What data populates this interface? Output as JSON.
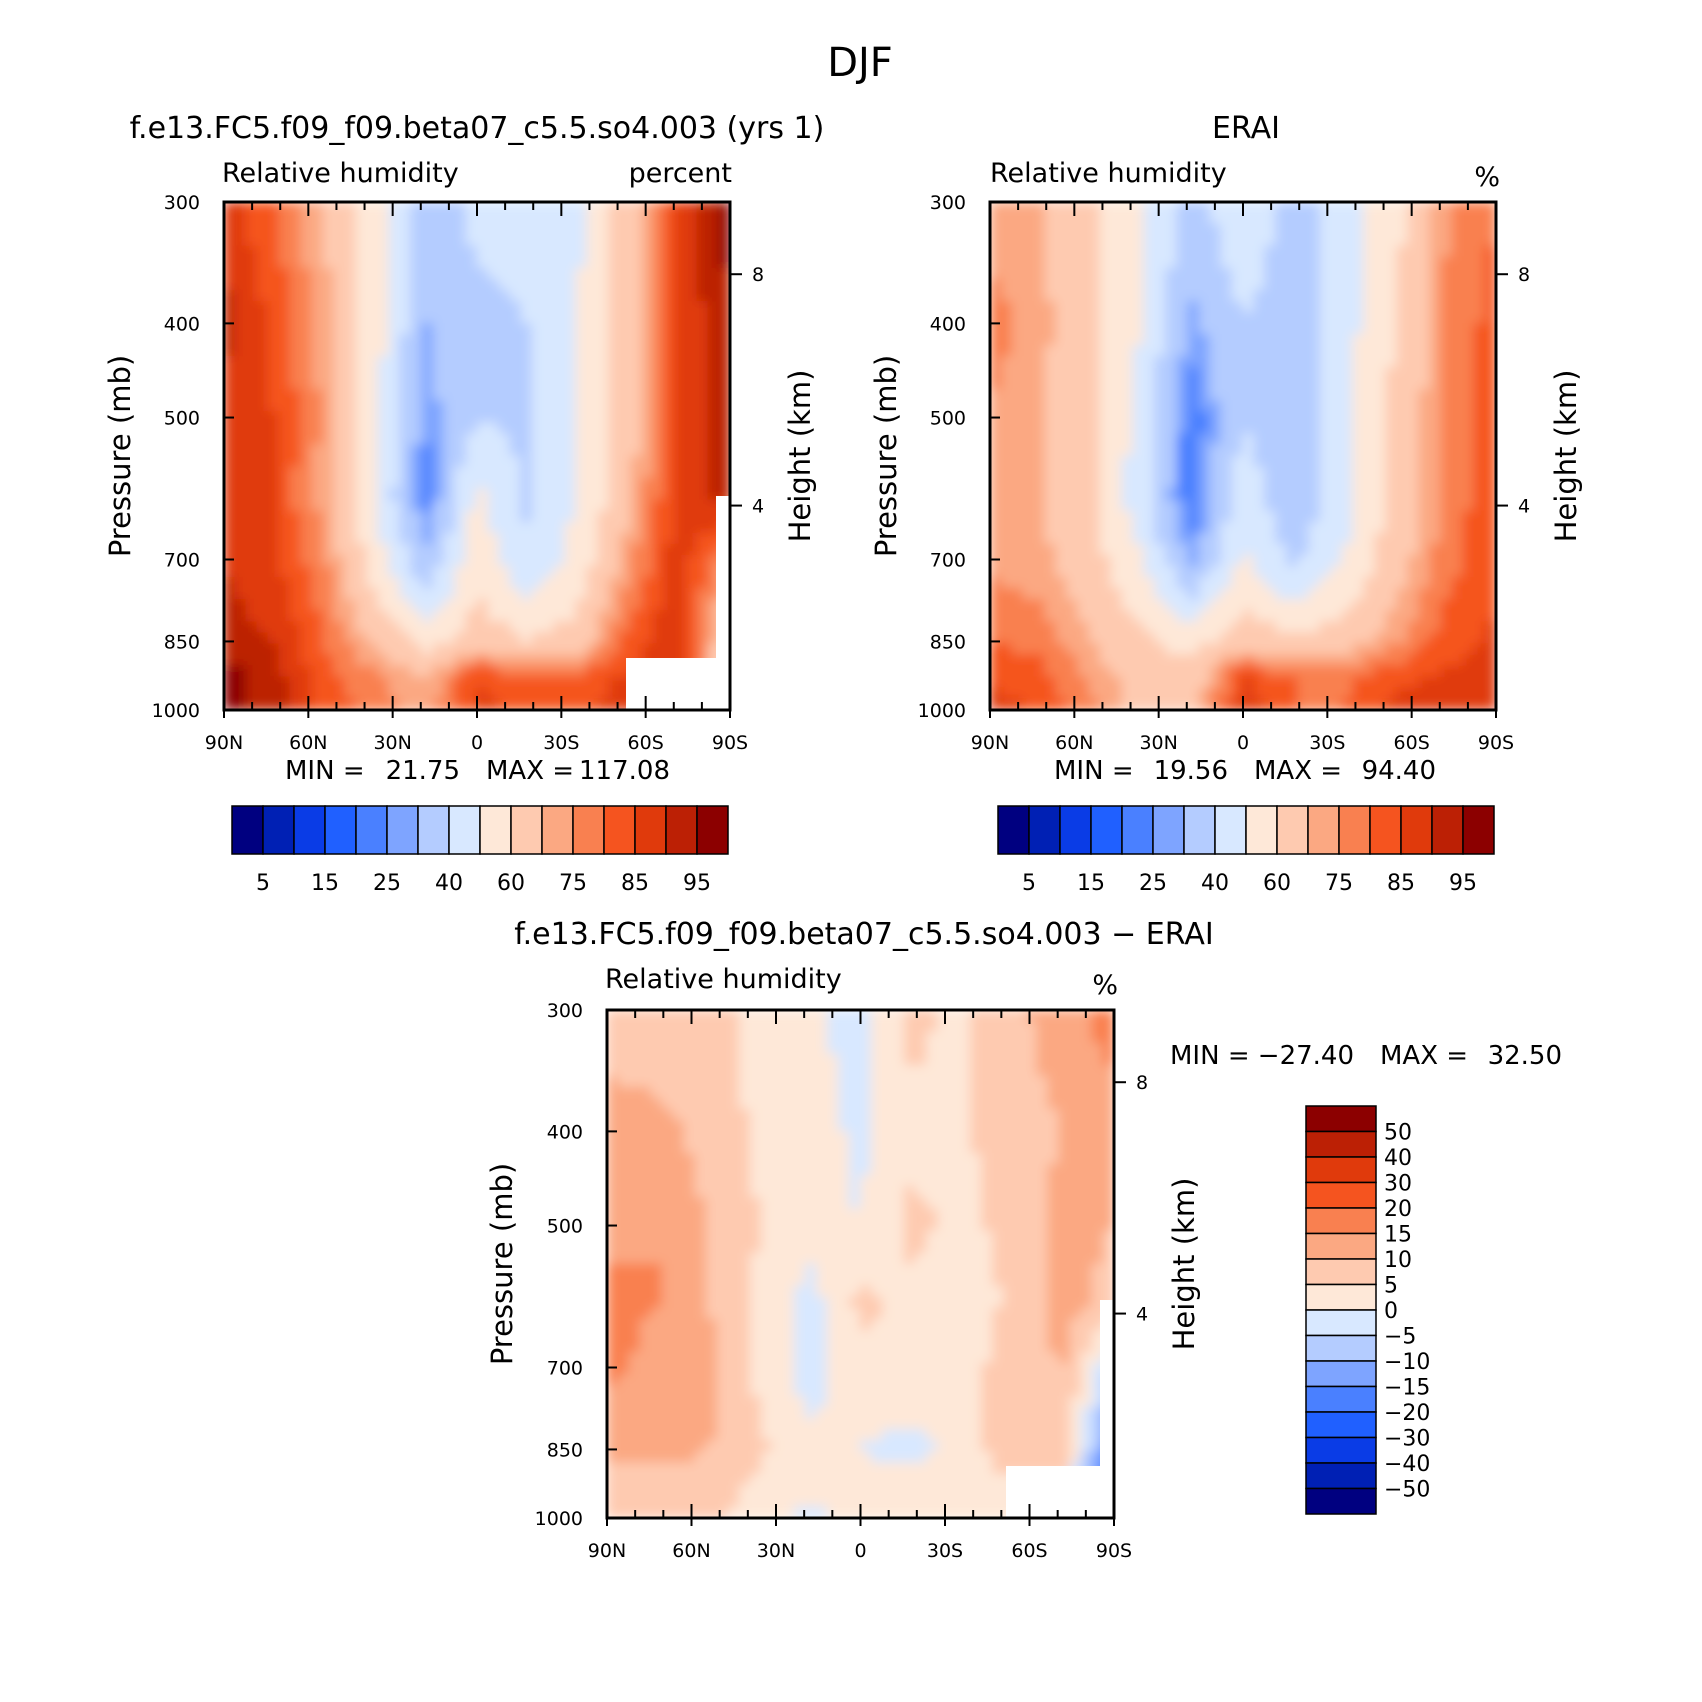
{
  "figure_title": "DJF",
  "panels": [
    {
      "title": "f.e13.FC5.f09_f09.beta07_c5.5.so4.003 (yrs 1)",
      "left_label": "Relative humidity",
      "right_label": "percent",
      "ylabel": "Pressure (mb)",
      "y2label": "Height (km)",
      "y_ticks": [
        "300",
        "400",
        "500",
        "700",
        "850",
        "1000"
      ],
      "y2_ticks": [
        "8",
        "4"
      ],
      "x_ticks": [
        "90N",
        "60N",
        "30N",
        "0",
        "30S",
        "60S",
        "90S"
      ],
      "min_label": "MIN =",
      "min_value": "21.75",
      "max_label": "MAX =",
      "max_value": "117.08",
      "colorbar_labels": [
        "5",
        "15",
        "25",
        "40",
        "60",
        "75",
        "85",
        "95"
      ]
    },
    {
      "title": "ERAI",
      "left_label": "Relative humidity",
      "right_label": "%",
      "ylabel": "Pressure (mb)",
      "y2label": "Height (km)",
      "y_ticks": [
        "300",
        "400",
        "500",
        "700",
        "850",
        "1000"
      ],
      "y2_ticks": [
        "8",
        "4"
      ],
      "x_ticks": [
        "90N",
        "60N",
        "30N",
        "0",
        "30S",
        "60S",
        "90S"
      ],
      "min_label": "MIN =",
      "min_value": "19.56",
      "max_label": "MAX =",
      "max_value": "94.40",
      "colorbar_labels": [
        "5",
        "15",
        "25",
        "40",
        "60",
        "75",
        "85",
        "95"
      ]
    },
    {
      "title": "f.e13.FC5.f09_f09.beta07_c5.5.so4.003 − ERAI",
      "left_label": "Relative humidity",
      "right_label": "%",
      "ylabel": "Pressure (mb)",
      "y2label": "Height (km)",
      "y_ticks": [
        "300",
        "400",
        "500",
        "700",
        "850",
        "1000"
      ],
      "y2_ticks": [
        "8",
        "4"
      ],
      "x_ticks": [
        "90N",
        "60N",
        "30N",
        "0",
        "30S",
        "60S",
        "90S"
      ],
      "min_label": "MIN =",
      "min_value": "−27.40",
      "max_label": "MAX =",
      "max_value": "32.50",
      "colorbar_labels": [
        "50",
        "40",
        "30",
        "20",
        "15",
        "10",
        "5",
        "0",
        "−5",
        "−10",
        "−15",
        "−20",
        "−30",
        "−40",
        "−50"
      ]
    }
  ],
  "colors": {
    "abs_scale": [
      "#000080",
      "#0020b4",
      "#0a3ce6",
      "#2060ff",
      "#4a80ff",
      "#7ea4ff",
      "#b4ccff",
      "#d8e8ff",
      "#fee8d8",
      "#fecab0",
      "#fba882",
      "#f98050",
      "#f5541f",
      "#e03a0c",
      "#bc2005",
      "#8c0000"
    ],
    "diff_scale": [
      "#8c0000",
      "#bc2005",
      "#e03a0c",
      "#f5541f",
      "#f98050",
      "#fba882",
      "#fecab0",
      "#fee8d8",
      "#d8e8ff",
      "#b4ccff",
      "#7ea4ff",
      "#4a80ff",
      "#2060ff",
      "#0a3ce6",
      "#0020b4",
      "#000080"
    ]
  },
  "chart_data": [
    {
      "type": "heatmap",
      "title": "f.e13.FC5.f09_f09.beta07_c5.5.so4.003 (yrs 1)",
      "xlabel": "",
      "ylabel": "Pressure (mb)",
      "y2label": "Height (km)",
      "x": [
        90,
        72,
        54,
        36,
        18,
        0,
        -18,
        -36,
        -54,
        -72,
        -90
      ],
      "x_tick_labels": [
        "90N",
        "60N",
        "30N",
        "0",
        "30S",
        "60S",
        "90S"
      ],
      "pressure": [
        300,
        400,
        500,
        600,
        700,
        850,
        925,
        1000
      ],
      "y_reversed": true,
      "units": "percent",
      "levels": [
        5,
        10,
        15,
        20,
        25,
        30,
        40,
        50,
        60,
        70,
        75,
        80,
        85,
        90,
        95
      ],
      "values": [
        [
          88,
          80,
          70,
          55,
          35,
          42,
          42,
          48,
          65,
          86,
          98
        ],
        [
          92,
          84,
          72,
          55,
          30,
          38,
          40,
          50,
          65,
          86,
          94
        ],
        [
          88,
          85,
          74,
          52,
          26,
          40,
          38,
          50,
          66,
          86,
          92
        ],
        [
          88,
          85,
          72,
          50,
          22,
          52,
          38,
          50,
          68,
          88,
          92
        ],
        [
          90,
          86,
          76,
          55,
          32,
          56,
          42,
          54,
          74,
          88,
          75
        ],
        [
          92,
          90,
          80,
          68,
          56,
          66,
          60,
          64,
          82,
          90,
          60
        ],
        [
          98,
          92,
          82,
          76,
          70,
          85,
          82,
          82,
          86,
          86,
          60
        ],
        [
          98,
          92,
          84,
          78,
          72,
          86,
          84,
          84,
          88,
          86,
          60
        ]
      ],
      "missing_region": "near-surface values south of ~60S",
      "min": 21.75,
      "max": 117.08
    },
    {
      "type": "heatmap",
      "title": "ERAI",
      "xlabel": "",
      "ylabel": "Pressure (mb)",
      "y2label": "Height (km)",
      "x": [
        90,
        72,
        54,
        36,
        18,
        0,
        -18,
        -36,
        -54,
        -72,
        -90
      ],
      "x_tick_labels": [
        "90N",
        "60N",
        "30N",
        "0",
        "30S",
        "60S",
        "90S"
      ],
      "pressure": [
        300,
        400,
        500,
        600,
        700,
        850,
        925,
        1000
      ],
      "y_reversed": true,
      "units": "%",
      "levels": [
        5,
        10,
        15,
        20,
        25,
        30,
        40,
        50,
        60,
        70,
        75,
        80,
        85,
        90,
        95
      ],
      "values": [
        [
          72,
          70,
          62,
          52,
          36,
          48,
          36,
          44,
          56,
          74,
          80
        ],
        [
          78,
          72,
          64,
          50,
          28,
          40,
          34,
          46,
          60,
          76,
          82
        ],
        [
          74,
          70,
          64,
          46,
          20,
          40,
          30,
          46,
          62,
          76,
          82
        ],
        [
          72,
          70,
          62,
          44,
          20,
          46,
          32,
          46,
          62,
          76,
          84
        ],
        [
          74,
          72,
          64,
          50,
          28,
          52,
          38,
          50,
          66,
          78,
          84
        ],
        [
          80,
          78,
          70,
          62,
          56,
          66,
          62,
          66,
          74,
          82,
          86
        ],
        [
          84,
          82,
          74,
          66,
          64,
          86,
          80,
          78,
          84,
          86,
          88
        ],
        [
          88,
          84,
          76,
          68,
          66,
          88,
          80,
          80,
          86,
          86,
          90
        ]
      ],
      "min": 19.56,
      "max": 94.4
    },
    {
      "type": "heatmap",
      "title": "f.e13.FC5.f09_f09.beta07_c5.5.so4.003 − ERAI",
      "xlabel": "",
      "ylabel": "Pressure (mb)",
      "y2label": "Height (km)",
      "x": [
        90,
        72,
        54,
        36,
        18,
        0,
        -18,
        -36,
        -54,
        -72,
        -90
      ],
      "x_tick_labels": [
        "90N",
        "60N",
        "30N",
        "0",
        "30S",
        "60S",
        "90S"
      ],
      "pressure": [
        300,
        400,
        500,
        600,
        700,
        850,
        925,
        1000
      ],
      "y_reversed": true,
      "units": "%",
      "levels": [
        -50,
        -40,
        -30,
        -20,
        -15,
        -10,
        -5,
        0,
        5,
        10,
        15,
        20,
        30,
        40,
        50
      ],
      "values": [
        [
          8,
          6,
          8,
          3,
          1,
          -2,
          6,
          4,
          9,
          12,
          18
        ],
        [
          12,
          12,
          8,
          4,
          2,
          -1,
          4,
          4,
          8,
          10,
          12
        ],
        [
          14,
          15,
          10,
          5,
          2,
          0,
          6,
          4,
          6,
          12,
          10
        ],
        [
          16,
          15,
          10,
          4,
          -2,
          6,
          4,
          2,
          6,
          12,
          8
        ],
        [
          16,
          14,
          12,
          4,
          -2,
          4,
          4,
          2,
          8,
          10,
          -5
        ],
        [
          12,
          12,
          10,
          6,
          1,
          0,
          -2,
          2,
          8,
          10,
          -20
        ],
        [
          8,
          8,
          8,
          4,
          4,
          2,
          2,
          4,
          4,
          2,
          -25
        ],
        [
          10,
          8,
          6,
          2,
          -2,
          2,
          2,
          4,
          4,
          2,
          2
        ]
      ],
      "missing_region": "near-surface values south of ~60S",
      "min": -27.4,
      "max": 32.5
    }
  ]
}
